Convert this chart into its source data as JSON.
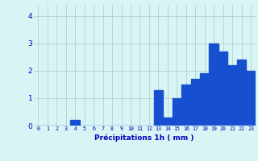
{
  "hours": [
    0,
    1,
    2,
    3,
    4,
    5,
    6,
    7,
    8,
    9,
    10,
    11,
    12,
    13,
    14,
    15,
    16,
    17,
    18,
    19,
    20,
    21,
    22,
    23
  ],
  "values": [
    0.0,
    0.0,
    0.0,
    0.0,
    0.2,
    0.0,
    0.0,
    0.0,
    0.0,
    0.0,
    0.0,
    0.0,
    0.0,
    1.3,
    0.3,
    1.0,
    1.5,
    1.7,
    1.9,
    3.0,
    2.7,
    2.2,
    2.4,
    2.0
  ],
  "bar_color": "#1650d0",
  "background_color": "#d8f5f5",
  "grid_color": "#adc8c8",
  "xlabel": "Précipitations 1h ( mm )",
  "xlabel_color": "#0000bb",
  "tick_color": "#0000bb",
  "ylim": [
    0,
    4.4
  ],
  "yticks": [
    0,
    1,
    2,
    3,
    4
  ],
  "figsize": [
    3.2,
    2.0
  ],
  "dpi": 100
}
